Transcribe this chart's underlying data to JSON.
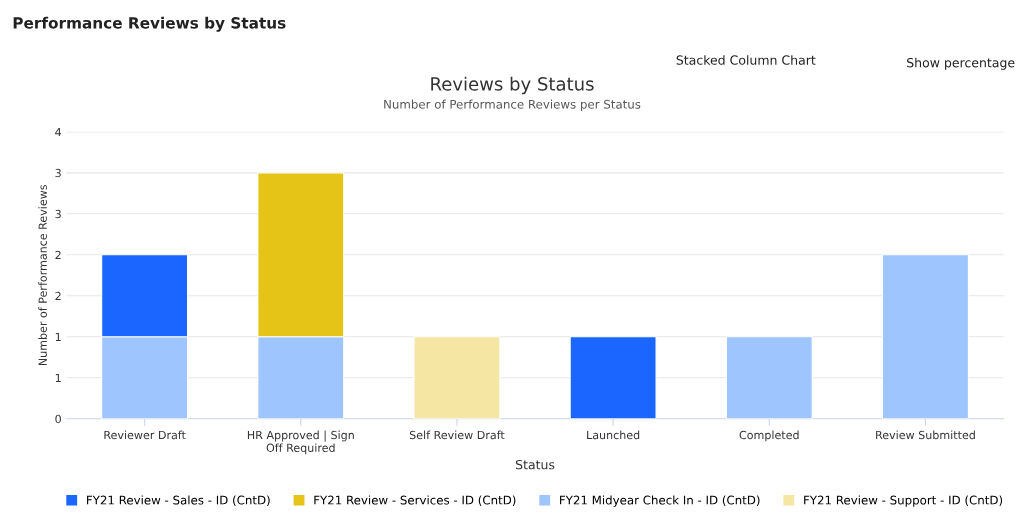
{
  "chart_data": {
    "type": "bar",
    "title": "Reviews by Status",
    "subtitle": "Number of Performance Reviews per Status",
    "xlabel": "Status",
    "ylabel": "Number of Performance Reviews",
    "categories": [
      "Reviewer Draft",
      "HR Approved | Sign Off Required",
      "Self Review Draft",
      "Launched",
      "Completed",
      "Review Submitted"
    ],
    "series": [
      {
        "name": "FY21 Midyear Check In - ID (CntD)",
        "color": "#9ec5fe",
        "values": [
          1,
          1,
          null,
          null,
          1,
          2
        ]
      },
      {
        "name": "FY21 Review - Support - ID (CntD)",
        "color": "#f5e6a3",
        "values": [
          null,
          null,
          1,
          null,
          null,
          null
        ]
      },
      {
        "name": "FY21 Review - Sales - ID (CntD)",
        "color": "#1a66ff",
        "values": [
          1,
          null,
          null,
          1,
          null,
          null
        ]
      },
      {
        "name": "FY21 Review - Services - ID (CntD)",
        "color": "#e6c317",
        "values": [
          null,
          2,
          null,
          null,
          null,
          null
        ]
      }
    ],
    "stacked": true,
    "ylim": [
      0,
      3.5
    ],
    "yticks": [
      0,
      {
        "value": 0.5,
        "label": "1"
      },
      1,
      {
        "value": 1.5,
        "label": "2"
      },
      2,
      {
        "value": 2.5,
        "label": "3"
      },
      3,
      {
        "value": 3.5,
        "label": "4"
      }
    ],
    "grid": "y",
    "legend": "bottom",
    "annotations": [
      "Performance Reviews by Status",
      "Stacked Column Chart",
      "Show percentage"
    ]
  }
}
